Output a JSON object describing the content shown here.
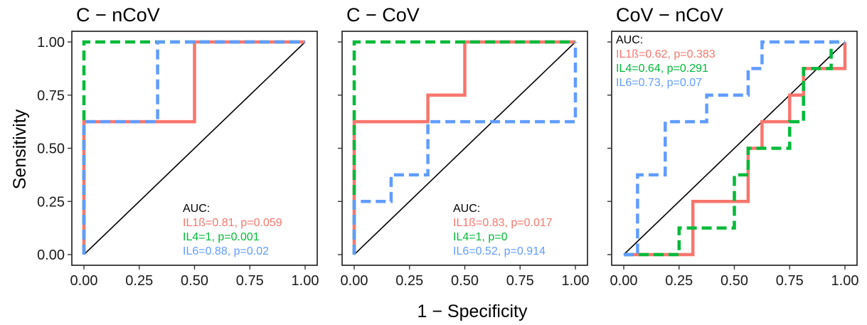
{
  "figure": {
    "xlabel": "1 − Specificity",
    "ylabel": "Sensitivity",
    "colors": {
      "IL1b": "#f8766d",
      "IL4": "#00ba38",
      "IL6": "#619cff"
    }
  },
  "chart_data": [
    {
      "type": "line",
      "title": "C − nCoV",
      "xlim": [
        0,
        1
      ],
      "ylim": [
        0,
        1
      ],
      "x_ticks": [
        "0.00",
        "0.25",
        "0.50",
        "0.75",
        "1.00"
      ],
      "y_ticks": [
        "0.00",
        "0.25",
        "0.50",
        "0.75",
        "1.00"
      ],
      "legend_position": "bottom-right",
      "auc_header": "AUC:",
      "series": [
        {
          "key": "IL1b",
          "label": "IL1ß=0.81, p=0.059",
          "style": "solid",
          "points": [
            [
              0,
              0
            ],
            [
              0,
              0.625
            ],
            [
              0.5,
              0.625
            ],
            [
              0.5,
              1
            ],
            [
              1,
              1
            ]
          ]
        },
        {
          "key": "IL4",
          "label": "IL4=1, p=0.001",
          "style": "dashed",
          "points": [
            [
              0,
              0
            ],
            [
              0,
              1
            ],
            [
              1,
              1
            ]
          ]
        },
        {
          "key": "IL6",
          "label": "IL6=0.88, p=0.02",
          "style": "dashed",
          "points": [
            [
              0,
              0
            ],
            [
              0,
              0.625
            ],
            [
              0.333,
              0.625
            ],
            [
              0.333,
              1
            ],
            [
              1,
              1
            ]
          ]
        }
      ]
    },
    {
      "type": "line",
      "title": "C − CoV",
      "xlim": [
        0,
        1
      ],
      "ylim": [
        0,
        1
      ],
      "x_ticks": [
        "0.00",
        "0.25",
        "0.50",
        "0.75",
        "1.00"
      ],
      "y_ticks": [
        "0.00",
        "0.25",
        "0.50",
        "0.75",
        "1.00"
      ],
      "legend_position": "bottom-right",
      "auc_header": "AUC:",
      "series": [
        {
          "key": "IL1b",
          "label": "IL1ß=0.83, p=0.017",
          "style": "solid",
          "points": [
            [
              0,
              0
            ],
            [
              0,
              0.625
            ],
            [
              0.333,
              0.625
            ],
            [
              0.333,
              0.75
            ],
            [
              0.5,
              0.75
            ],
            [
              0.5,
              1
            ],
            [
              1,
              1
            ]
          ]
        },
        {
          "key": "IL4",
          "label": "IL4=1, p=0",
          "style": "dashed",
          "points": [
            [
              0,
              0
            ],
            [
              0,
              1
            ],
            [
              1,
              1
            ]
          ]
        },
        {
          "key": "IL6",
          "label": "IL6=0.52, p=0.914",
          "style": "dashed",
          "points": [
            [
              0,
              0
            ],
            [
              0,
              0.25
            ],
            [
              0.167,
              0.25
            ],
            [
              0.167,
              0.375
            ],
            [
              0.333,
              0.375
            ],
            [
              0.333,
              0.625
            ],
            [
              1,
              0.625
            ],
            [
              1,
              1
            ]
          ]
        }
      ]
    },
    {
      "type": "line",
      "title": "CoV − nCoV",
      "xlim": [
        0,
        1
      ],
      "ylim": [
        0,
        1
      ],
      "x_ticks": [
        "0.00",
        "0.25",
        "0.50",
        "0.75",
        "1.00"
      ],
      "y_ticks": [
        "0.00",
        "0.25",
        "0.50",
        "0.75",
        "1.00"
      ],
      "legend_position": "top-left",
      "auc_header": "AUC:",
      "series": [
        {
          "key": "IL1b",
          "label": "IL1ß=0.62, p=0.383",
          "style": "solid",
          "points": [
            [
              0,
              0
            ],
            [
              0.3125,
              0
            ],
            [
              0.3125,
              0.25
            ],
            [
              0.5625,
              0.25
            ],
            [
              0.5625,
              0.5
            ],
            [
              0.625,
              0.5
            ],
            [
              0.625,
              0.625
            ],
            [
              0.75,
              0.625
            ],
            [
              0.75,
              0.75
            ],
            [
              0.8125,
              0.75
            ],
            [
              0.8125,
              0.875
            ],
            [
              1,
              0.875
            ],
            [
              1,
              1
            ]
          ]
        },
        {
          "key": "IL4",
          "label": "IL4=0.64, p=0.291",
          "style": "dashed",
          "points": [
            [
              0,
              0
            ],
            [
              0.25,
              0
            ],
            [
              0.25,
              0.125
            ],
            [
              0.5,
              0.125
            ],
            [
              0.5,
              0.375
            ],
            [
              0.5625,
              0.375
            ],
            [
              0.5625,
              0.5
            ],
            [
              0.75,
              0.5
            ],
            [
              0.75,
              0.625
            ],
            [
              0.8125,
              0.625
            ],
            [
              0.8125,
              0.875
            ],
            [
              0.9375,
              0.875
            ],
            [
              0.9375,
              1
            ],
            [
              1,
              1
            ]
          ]
        },
        {
          "key": "IL6",
          "label": "IL6=0.73, p=0.07",
          "style": "dashed",
          "points": [
            [
              0,
              0
            ],
            [
              0.0625,
              0
            ],
            [
              0.0625,
              0.375
            ],
            [
              0.1875,
              0.375
            ],
            [
              0.1875,
              0.625
            ],
            [
              0.375,
              0.625
            ],
            [
              0.375,
              0.75
            ],
            [
              0.5625,
              0.75
            ],
            [
              0.5625,
              0.875
            ],
            [
              0.625,
              0.875
            ],
            [
              0.625,
              1
            ],
            [
              1,
              1
            ]
          ]
        }
      ]
    }
  ]
}
